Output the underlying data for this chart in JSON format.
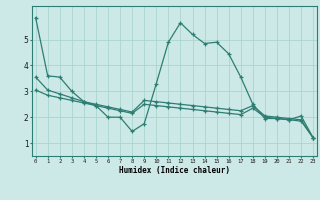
{
  "xlabel": "Humidex (Indice chaleur)",
  "background_color": "#cce9e7",
  "grid_color": "#aad4d0",
  "line_color": "#2e7d72",
  "x_ticks": [
    0,
    1,
    2,
    3,
    4,
    5,
    6,
    7,
    8,
    9,
    10,
    11,
    12,
    13,
    14,
    15,
    16,
    17,
    18,
    19,
    20,
    21,
    22,
    23
  ],
  "ylim": [
    0.5,
    6.3
  ],
  "xlim": [
    -0.3,
    23.3
  ],
  "series1_x": [
    0,
    1,
    2,
    3,
    4,
    5,
    6,
    7,
    8,
    9,
    10,
    11,
    12,
    13,
    14,
    15,
    16,
    17,
    18,
    19,
    20,
    21,
    22,
    23
  ],
  "series1_y": [
    5.85,
    3.6,
    3.55,
    3.0,
    2.6,
    2.45,
    2.0,
    2.0,
    1.45,
    1.75,
    3.3,
    4.9,
    5.65,
    5.2,
    4.85,
    4.9,
    4.45,
    3.55,
    2.5,
    1.95,
    1.95,
    1.9,
    2.05,
    1.2
  ],
  "series2_x": [
    0,
    1,
    2,
    3,
    4,
    5,
    6,
    7,
    8,
    9,
    10,
    11,
    12,
    13,
    14,
    15,
    16,
    17,
    18,
    19,
    20,
    21,
    22,
    23
  ],
  "series2_y": [
    3.55,
    3.05,
    2.9,
    2.75,
    2.6,
    2.5,
    2.4,
    2.3,
    2.2,
    2.65,
    2.6,
    2.55,
    2.5,
    2.45,
    2.4,
    2.35,
    2.3,
    2.25,
    2.45,
    2.05,
    2.0,
    1.95,
    1.9,
    1.2
  ],
  "series3_x": [
    0,
    1,
    2,
    3,
    4,
    5,
    6,
    7,
    8,
    9,
    10,
    11,
    12,
    13,
    14,
    15,
    16,
    17,
    18,
    19,
    20,
    21,
    22,
    23
  ],
  "series3_y": [
    3.05,
    2.85,
    2.75,
    2.65,
    2.55,
    2.45,
    2.35,
    2.25,
    2.15,
    2.5,
    2.45,
    2.4,
    2.35,
    2.3,
    2.25,
    2.2,
    2.15,
    2.1,
    2.35,
    2.0,
    1.95,
    1.9,
    1.85,
    1.2
  ]
}
